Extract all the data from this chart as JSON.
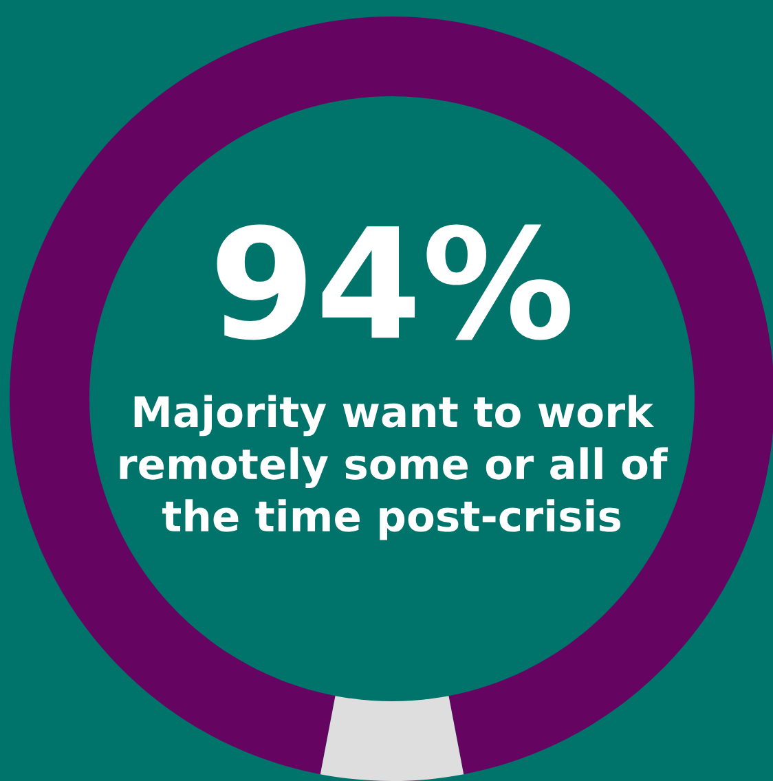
{
  "chart_data": {
    "type": "donut",
    "categories": [
      null,
      null
    ],
    "values": [
      94,
      6
    ],
    "colors": [
      "#660561",
      "#dedede"
    ],
    "value_labels": [
      "94%",
      null
    ],
    "annotations": [
      "Majority want to work\nremotely some or all of\nthe time post-crisis"
    ],
    "legend": false
  }
}
